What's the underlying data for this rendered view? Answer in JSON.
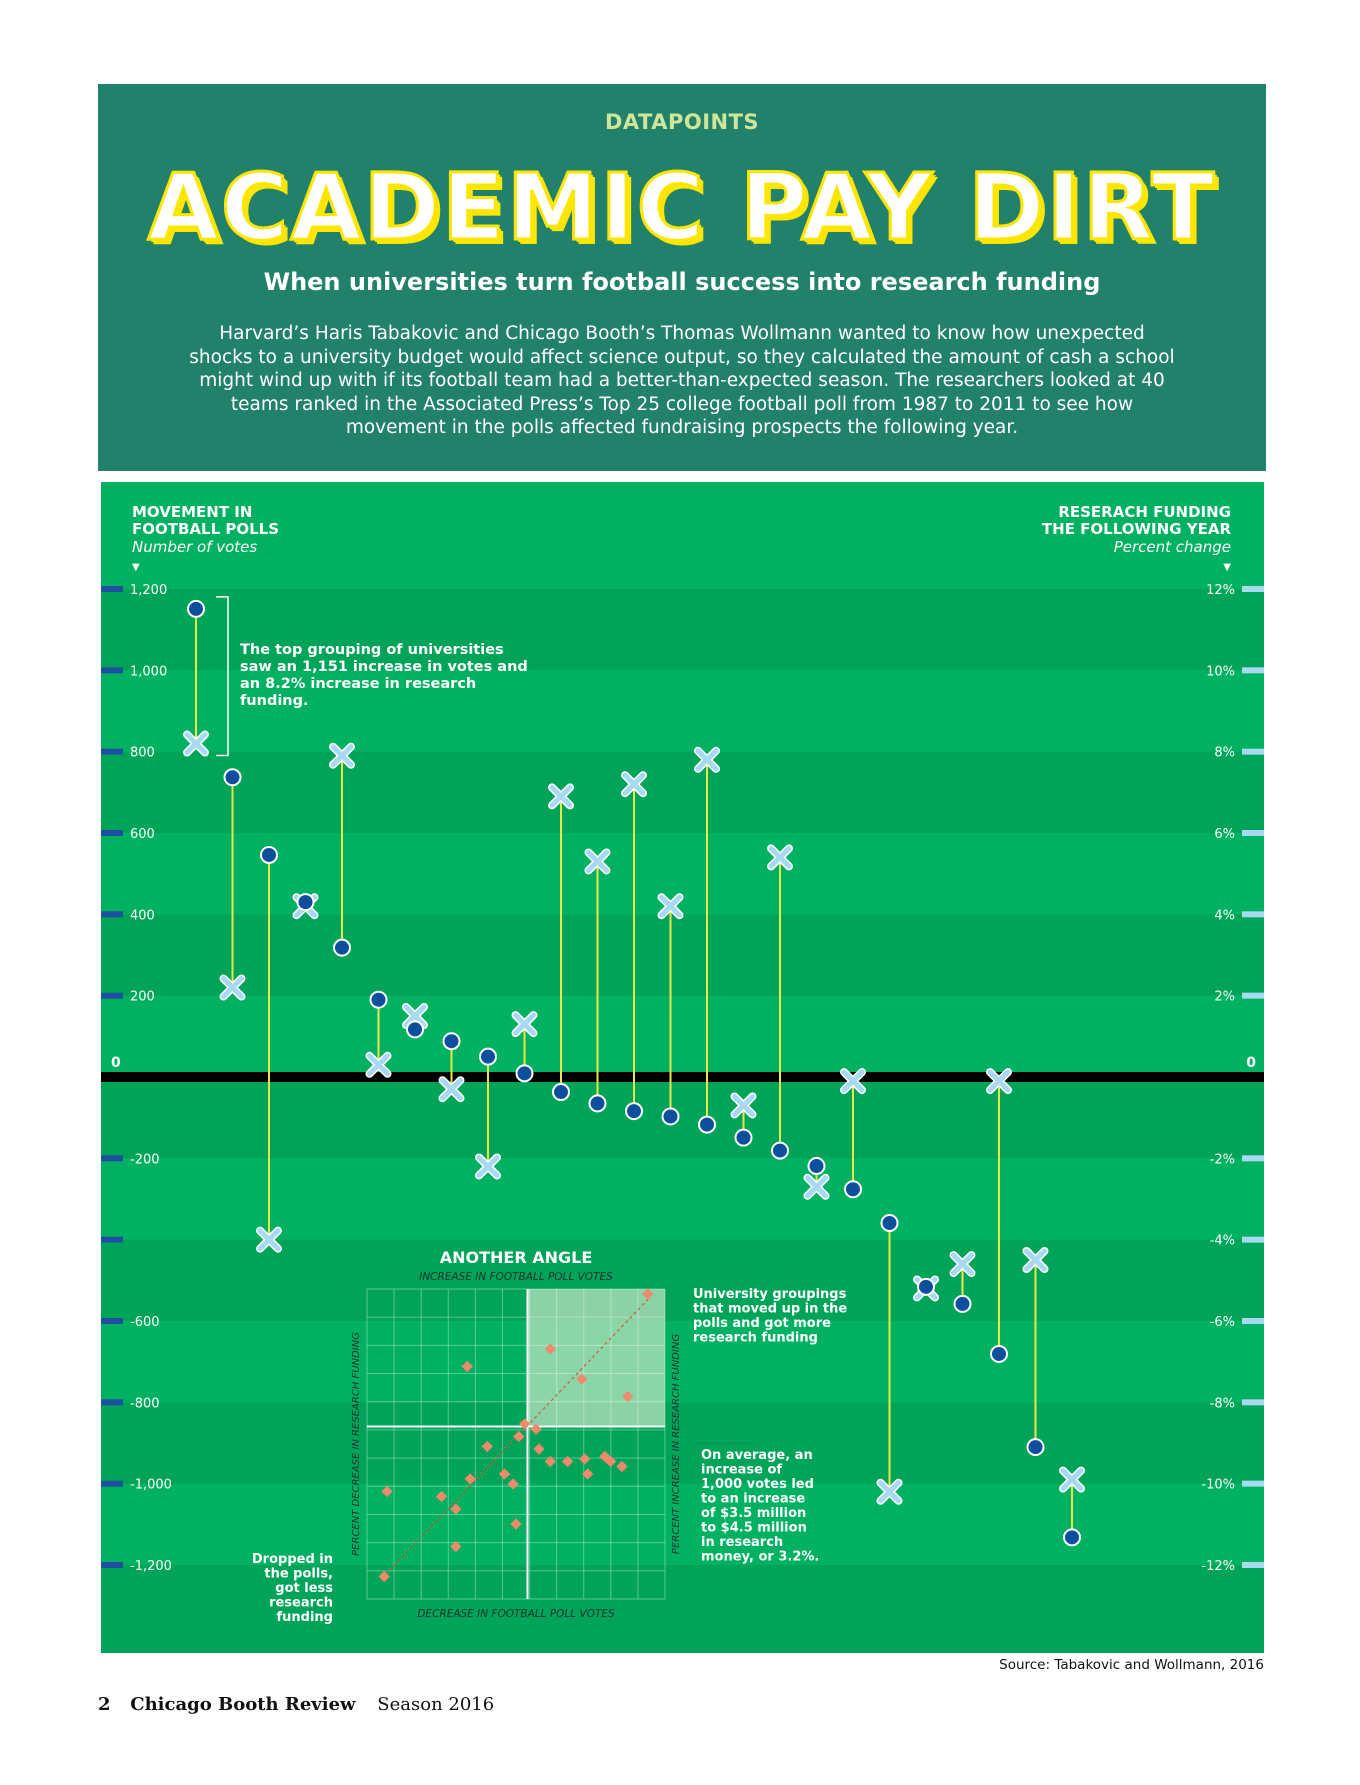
{
  "header": {
    "kicker": "DATAPOINTS",
    "title": "ACADEMIC PAY DIRT",
    "subtitle": "When universities turn football success into research funding",
    "intro": "Harvard’s Haris Tabakovic and Chicago Booth’s Thomas Wollmann wanted to know how unexpected shocks to a university budget would affect science output, so they calculated the amount of cash a school might wind up with if its football team had a better-than-expected season. The researchers looked at 40 teams ranked in the Associated Press’s Top 25 college football poll from 1987 to 2011 to see how movement in the polls affected fundraising prospects the following year."
  },
  "colors": {
    "header_bg": "#22816a",
    "panel_bg": "#00b161",
    "band_dark": "#00a459",
    "circle": "#0d4f9c",
    "cross": "#a9d8f1",
    "connector": "#e9e84a",
    "title_outline": "#ffe600",
    "kicker": "#cfe59a",
    "inset_point": "#f08a6b"
  },
  "chart_data": [
    {
      "type": "scatter",
      "left_axis": {
        "title_line1": "MOVEMENT IN",
        "title_line2": "FOOTBALL POLLS",
        "subtitle": "Number of votes",
        "ticks": [
          {
            "v": 1200,
            "label": "1,200"
          },
          {
            "v": 1000,
            "label": "1,000"
          },
          {
            "v": 800,
            "label": "800"
          },
          {
            "v": 600,
            "label": "600"
          },
          {
            "v": 400,
            "label": "400"
          },
          {
            "v": 200,
            "label": "200"
          },
          {
            "v": 0,
            "label": "0"
          },
          {
            "v": -200,
            "label": "-200"
          },
          {
            "v": -400,
            "label": ""
          },
          {
            "v": -600,
            "label": "-600"
          },
          {
            "v": -800,
            "label": "-800"
          },
          {
            "v": -1000,
            "label": "-1,000"
          },
          {
            "v": -1200,
            "label": "-1,200"
          }
        ],
        "ylim": [
          -1200,
          1200
        ]
      },
      "right_axis": {
        "title_line1": "RESERACH FUNDING",
        "title_line2": "THE FOLLOWING YEAR",
        "subtitle": "Percent change",
        "ticks": [
          {
            "v": 12,
            "label": "12%"
          },
          {
            "v": 10,
            "label": "10%"
          },
          {
            "v": 8,
            "label": "8%"
          },
          {
            "v": 6,
            "label": "6%"
          },
          {
            "v": 4,
            "label": "4%"
          },
          {
            "v": 2,
            "label": "2%"
          },
          {
            "v": 0,
            "label": "0"
          },
          {
            "v": -2,
            "label": "-2%"
          },
          {
            "v": -4,
            "label": "-4%"
          },
          {
            "v": -6,
            "label": "-6%"
          },
          {
            "v": -8,
            "label": "-8%"
          },
          {
            "v": -10,
            "label": "-10%"
          },
          {
            "v": -12,
            "label": "-12%"
          }
        ],
        "ylim": [
          -12,
          12
        ]
      },
      "series": [
        {
          "name": "Movement in football polls",
          "marker": "circle",
          "values": [
            1151,
            737,
            546,
            430,
            318,
            190,
            117,
            88,
            50,
            9,
            -37,
            -65,
            -84,
            -97,
            -117,
            -149,
            -181,
            -219,
            -276,
            -359,
            -516,
            -558,
            -681,
            -910,
            -1132
          ]
        },
        {
          "name": "Research funding the following year",
          "marker": "cross",
          "values": [
            8.2,
            2.2,
            -4.0,
            4.2,
            7.9,
            0.3,
            1.5,
            -0.3,
            -2.2,
            1.3,
            6.9,
            5.3,
            7.2,
            4.2,
            7.8,
            -0.7,
            5.4,
            -2.7,
            -0.1,
            -10.2,
            -5.2,
            -4.6,
            -0.1,
            -4.5,
            -9.9
          ]
        }
      ],
      "annotation": "The top grouping of universities saw an 1,151 increase in votes and an 8.2% increase in research funding."
    },
    {
      "type": "scatter",
      "title": "ANOTHER ANGLE",
      "xlabel_top": "INCREASE IN FOOTBALL POLL VOTES",
      "xlabel_bottom": "DECREASE IN FOOTBALL POLL VOTES",
      "ylabel_left": "PERCENT DECREASE IN RESEARCH FUNDING",
      "ylabel_right": "PERCENT INCREASE IN RESEARCH FUNDING",
      "xlim": [
        -5.6,
        4.8
      ],
      "ylim": [
        -6.9,
        5.5
      ],
      "points": [
        [
          -5.0,
          -6.0
        ],
        [
          -4.9,
          -2.6
        ],
        [
          -3.0,
          -2.8
        ],
        [
          -2.5,
          -3.3
        ],
        [
          -2.5,
          -4.8
        ],
        [
          -2.1,
          2.4
        ],
        [
          -2.0,
          -2.1
        ],
        [
          -1.4,
          -0.8
        ],
        [
          -0.8,
          -1.9
        ],
        [
          -0.5,
          -2.3
        ],
        [
          -0.4,
          -3.9
        ],
        [
          -0.3,
          -0.4
        ],
        [
          -0.1,
          0.1
        ],
        [
          0.3,
          -0.1
        ],
        [
          0.4,
          -0.9
        ],
        [
          0.8,
          -1.4
        ],
        [
          0.8,
          3.1
        ],
        [
          1.4,
          -1.4
        ],
        [
          1.9,
          1.9
        ],
        [
          2.0,
          -1.3
        ],
        [
          2.1,
          -1.9
        ],
        [
          2.7,
          -1.2
        ],
        [
          2.9,
          -1.4
        ],
        [
          3.3,
          -1.6
        ],
        [
          3.5,
          1.2
        ],
        [
          4.2,
          5.3
        ]
      ],
      "trend": [
        [
          -5.1,
          -6.1
        ],
        [
          4.3,
          5.2
        ]
      ],
      "note_top_right": "University groupings that moved up in the polls and got more research funding",
      "note_bottom_right": "On average, an increase of 1,000 votes led to an increase of $3.5 million to $4.5 million in research money, or 3.2%.",
      "note_bottom_left": "Dropped in the polls, got less research funding"
    }
  ],
  "source": "Source:  Tabakovic and Wollmann, 2016",
  "footer": {
    "page_number": "2",
    "magazine": "Chicago Booth Review",
    "issue": "Season 2016"
  }
}
